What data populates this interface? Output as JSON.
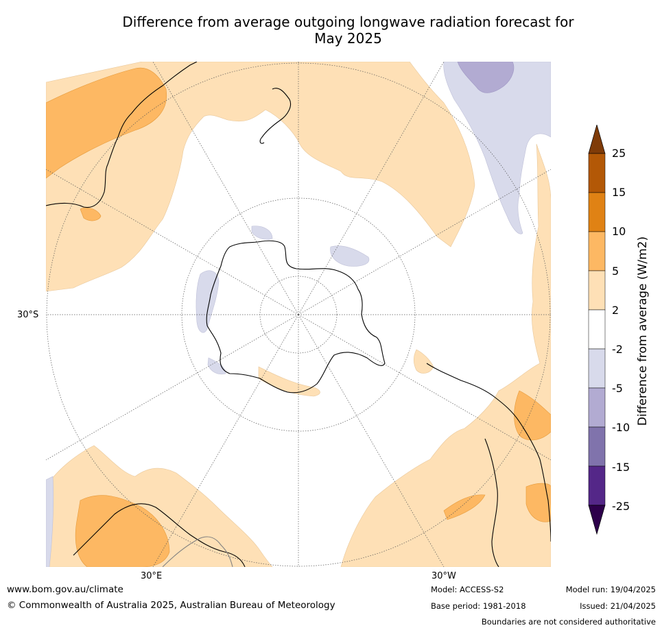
{
  "title_line1": "Difference from average outgoing longwave radiation forecast for",
  "title_line2": "May 2025",
  "axis_labels": {
    "lat": "30°S",
    "lon_east": "30°E",
    "lon_west": "30°W"
  },
  "colorbar": {
    "label": "Difference from average (W/m2)",
    "ticks": [
      "25",
      "15",
      "10",
      "5",
      "2",
      "-2",
      "-5",
      "-10",
      "-15",
      "-25"
    ],
    "colors": [
      "#b35806",
      "#e08214",
      "#fdb863",
      "#fee0b6",
      "#ffffff",
      "#d8daeb",
      "#b2abd2",
      "#8073ac",
      "#542788"
    ],
    "over_color": "#7f3b08",
    "under_color": "#2d004b"
  },
  "footer": {
    "website": "www.bom.gov.au/climate",
    "copyright": "© Commonwealth of Australia 2025, Australian Bureau of Meteorology",
    "model": "Model: ACCESS-S2",
    "base_period": "Base period: 1981-2018",
    "model_run": "Model run: 19/04/2025",
    "issued": "Issued: 21/04/2025",
    "disclaimer": "Boundaries are not considered authoritative"
  }
}
